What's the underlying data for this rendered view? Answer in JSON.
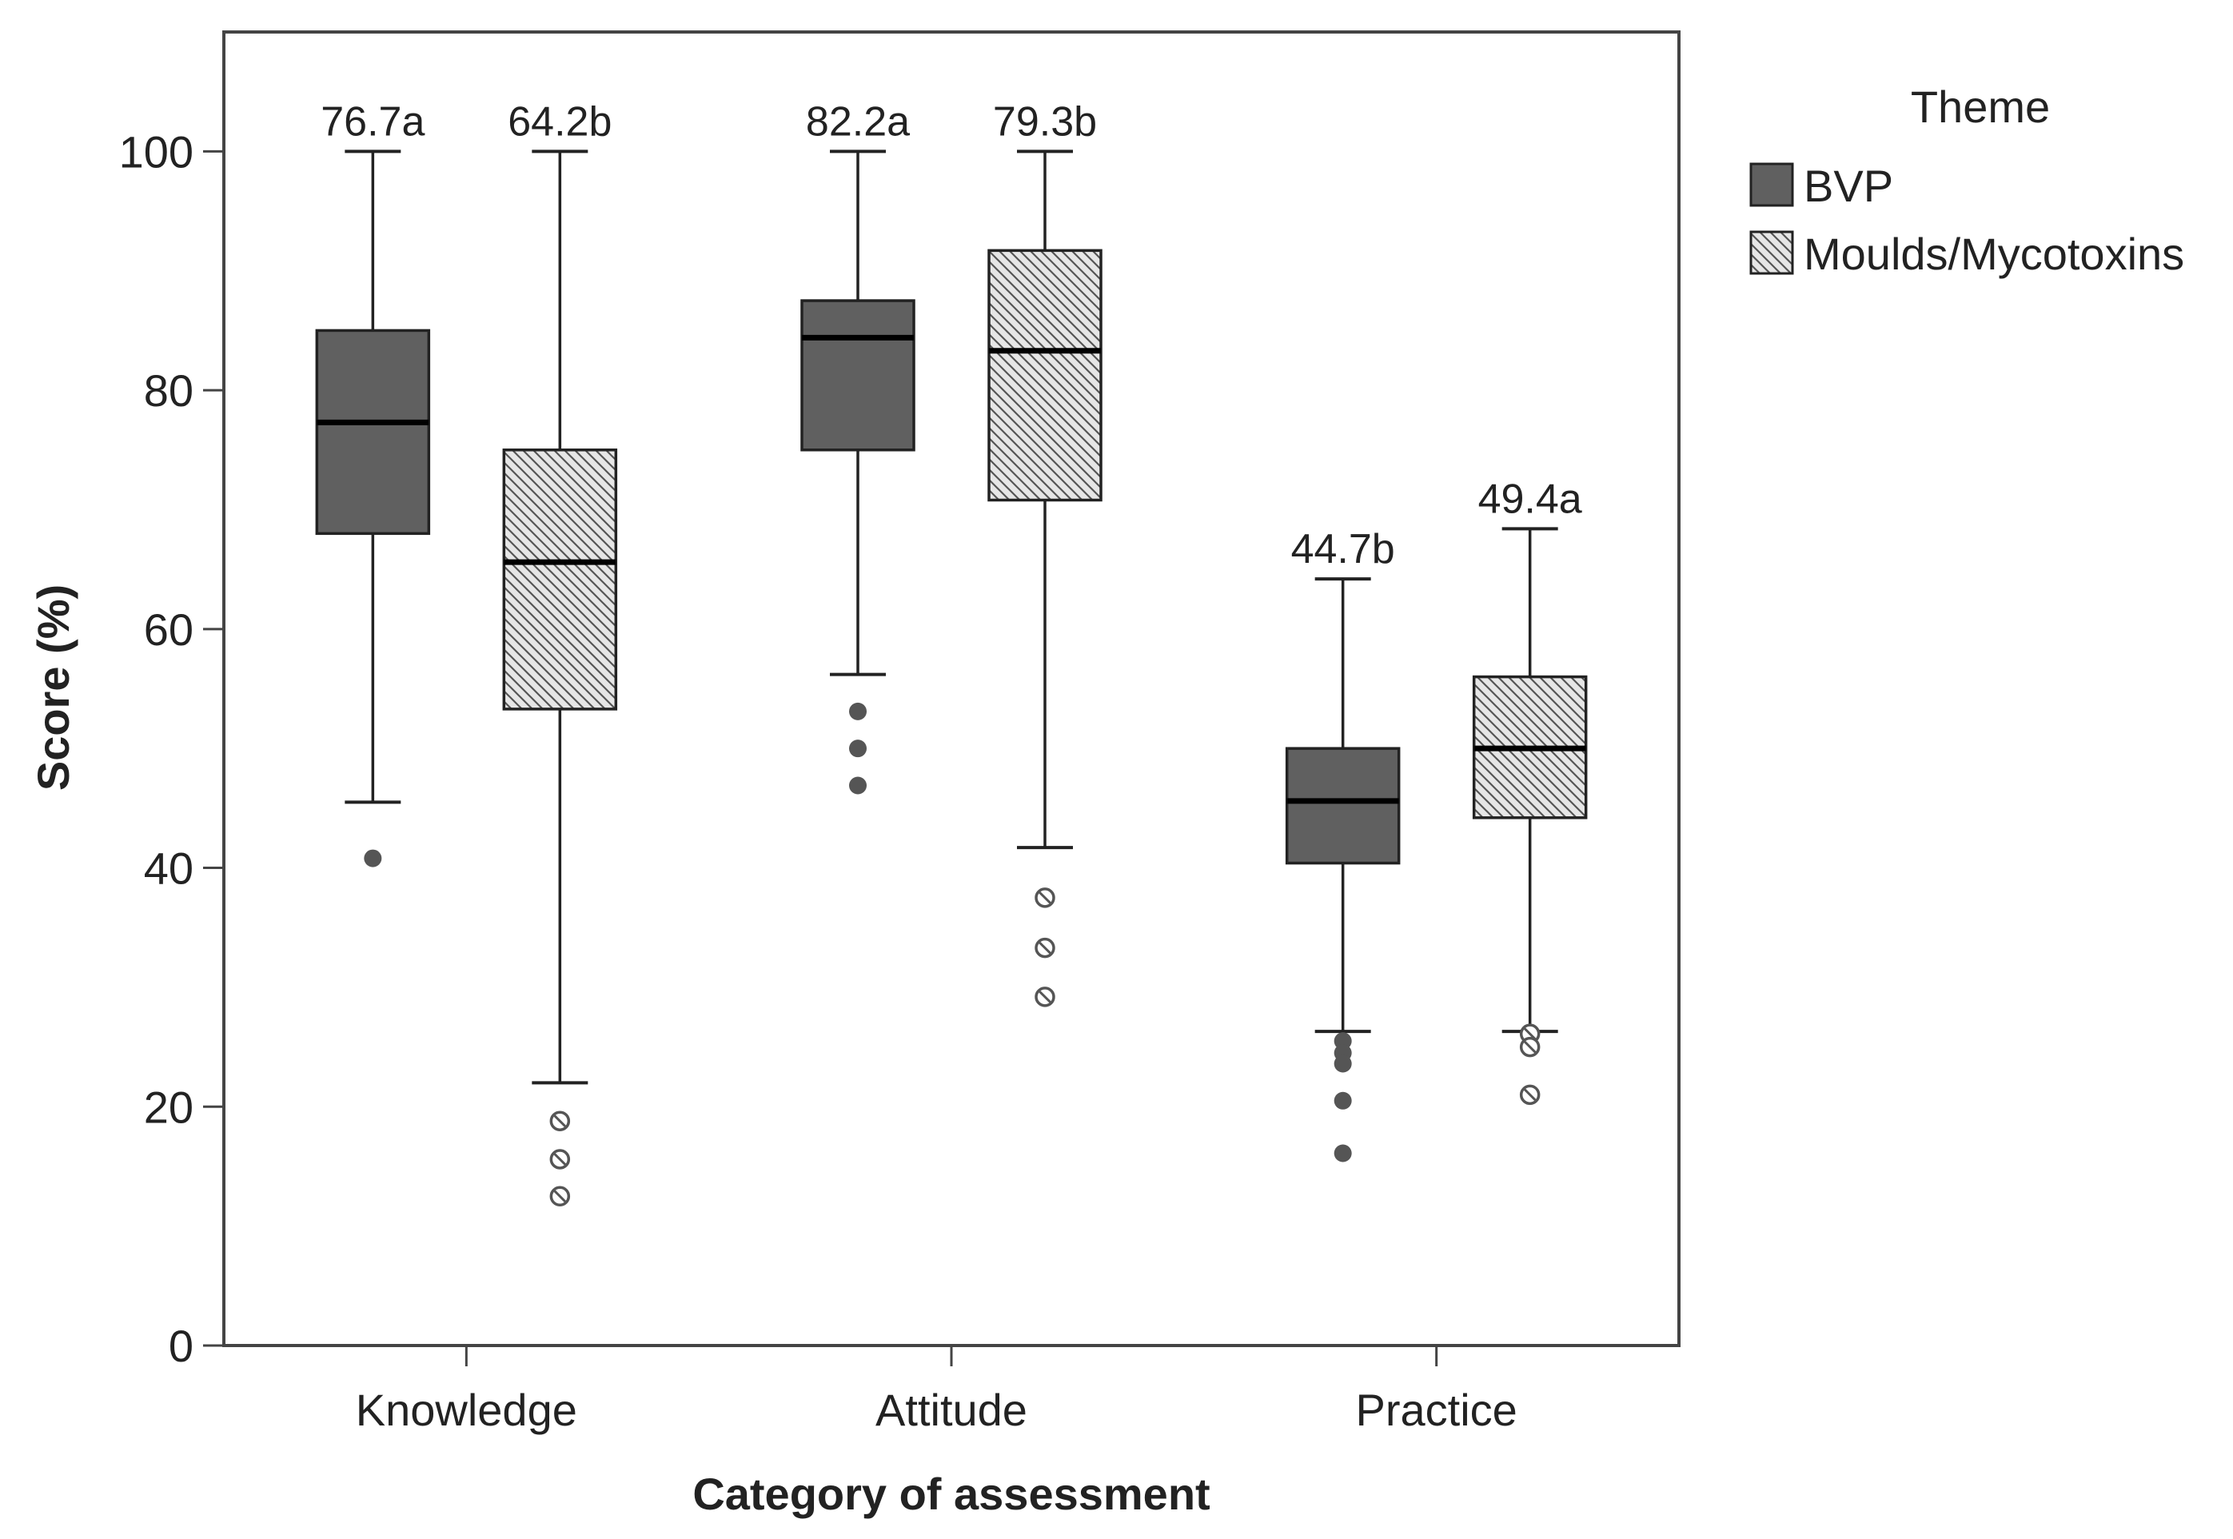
{
  "chart_data": {
    "type": "boxplot",
    "xlabel": "Category of assessment",
    "ylabel": "Score (%)",
    "ylim": [
      0,
      110
    ],
    "yticks": [
      0,
      20,
      40,
      60,
      80,
      100
    ],
    "grid": false,
    "categories": [
      "Knowledge",
      "Attitude",
      "Practice"
    ],
    "legend": {
      "title": "Theme",
      "placement": "right",
      "entries": [
        "BVP",
        "Moulds/Mycotoxins"
      ]
    },
    "colors": {
      "BVP": "#606060",
      "Moulds/Mycotoxins": "#e6e6e6",
      "hatch": "#555555",
      "outlier_solid": "#555555",
      "axis": "#444444"
    },
    "series": [
      {
        "name": "BVP",
        "fill": "solid",
        "boxes": [
          {
            "category": "Knowledge",
            "whisker_low": 45.5,
            "q1": 68,
            "median": 77.3,
            "q3": 85,
            "whisker_high": 100,
            "outliers": [
              40.8
            ],
            "annotation": "76.7a"
          },
          {
            "category": "Attitude",
            "whisker_low": 56.2,
            "q1": 75,
            "median": 84.4,
            "q3": 87.5,
            "whisker_high": 100,
            "outliers": [
              53.1,
              50,
              46.9
            ],
            "annotation": "82.2a"
          },
          {
            "category": "Practice",
            "whisker_low": 26.3,
            "q1": 40.4,
            "median": 45.6,
            "q3": 50,
            "whisker_high": 64.2,
            "outliers": [
              25.5,
              24.5,
              23.6,
              20.5,
              16.1
            ],
            "annotation": "44.7b"
          }
        ]
      },
      {
        "name": "Moulds/Mycotoxins",
        "fill": "hatched",
        "boxes": [
          {
            "category": "Knowledge",
            "whisker_low": 22,
            "q1": 53.3,
            "median": 65.6,
            "q3": 75,
            "whisker_high": 100,
            "outliers": [
              18.8,
              15.6,
              12.5
            ],
            "annotation": "64.2b"
          },
          {
            "category": "Attitude",
            "whisker_low": 41.7,
            "q1": 70.8,
            "median": 83.3,
            "q3": 91.7,
            "whisker_high": 100,
            "outliers": [
              37.5,
              33.3,
              29.2
            ],
            "annotation": "79.3b"
          },
          {
            "category": "Practice",
            "whisker_low": 26.3,
            "q1": 44.2,
            "median": 50,
            "q3": 56,
            "whisker_high": 68.4,
            "outliers": [
              26.1,
              25,
              21
            ],
            "annotation": "49.4a"
          }
        ]
      }
    ]
  }
}
